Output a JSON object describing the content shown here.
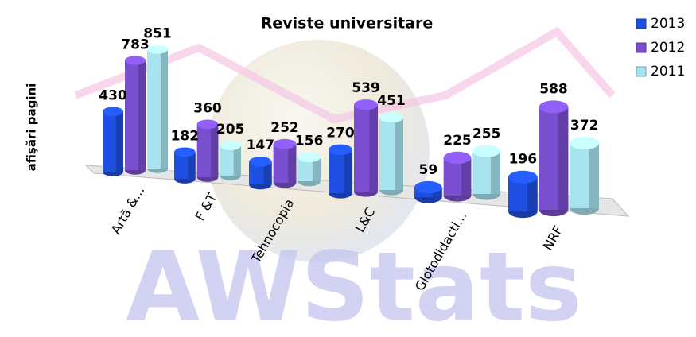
{
  "chart_data": {
    "type": "bar3d",
    "title": "Reviste universitare",
    "y_label": "afişări pagini",
    "watermark": "AWStats",
    "categories": [
      "Artă &...",
      "F &T",
      "Tehnocopia",
      "L&C",
      "Glotodidacti...",
      "NRF"
    ],
    "series": [
      {
        "name": "2013",
        "color": "#1f4fe0",
        "values": [
          430,
          182,
          147,
          270,
          59,
          196
        ]
      },
      {
        "name": "2012",
        "color": "#7a4fcf",
        "values": [
          783,
          360,
          252,
          539,
          225,
          588
        ]
      },
      {
        "name": "2011",
        "color": "#a8e4f0",
        "values": [
          851,
          205,
          156,
          451,
          255,
          372
        ]
      }
    ],
    "legend": "top-right"
  }
}
